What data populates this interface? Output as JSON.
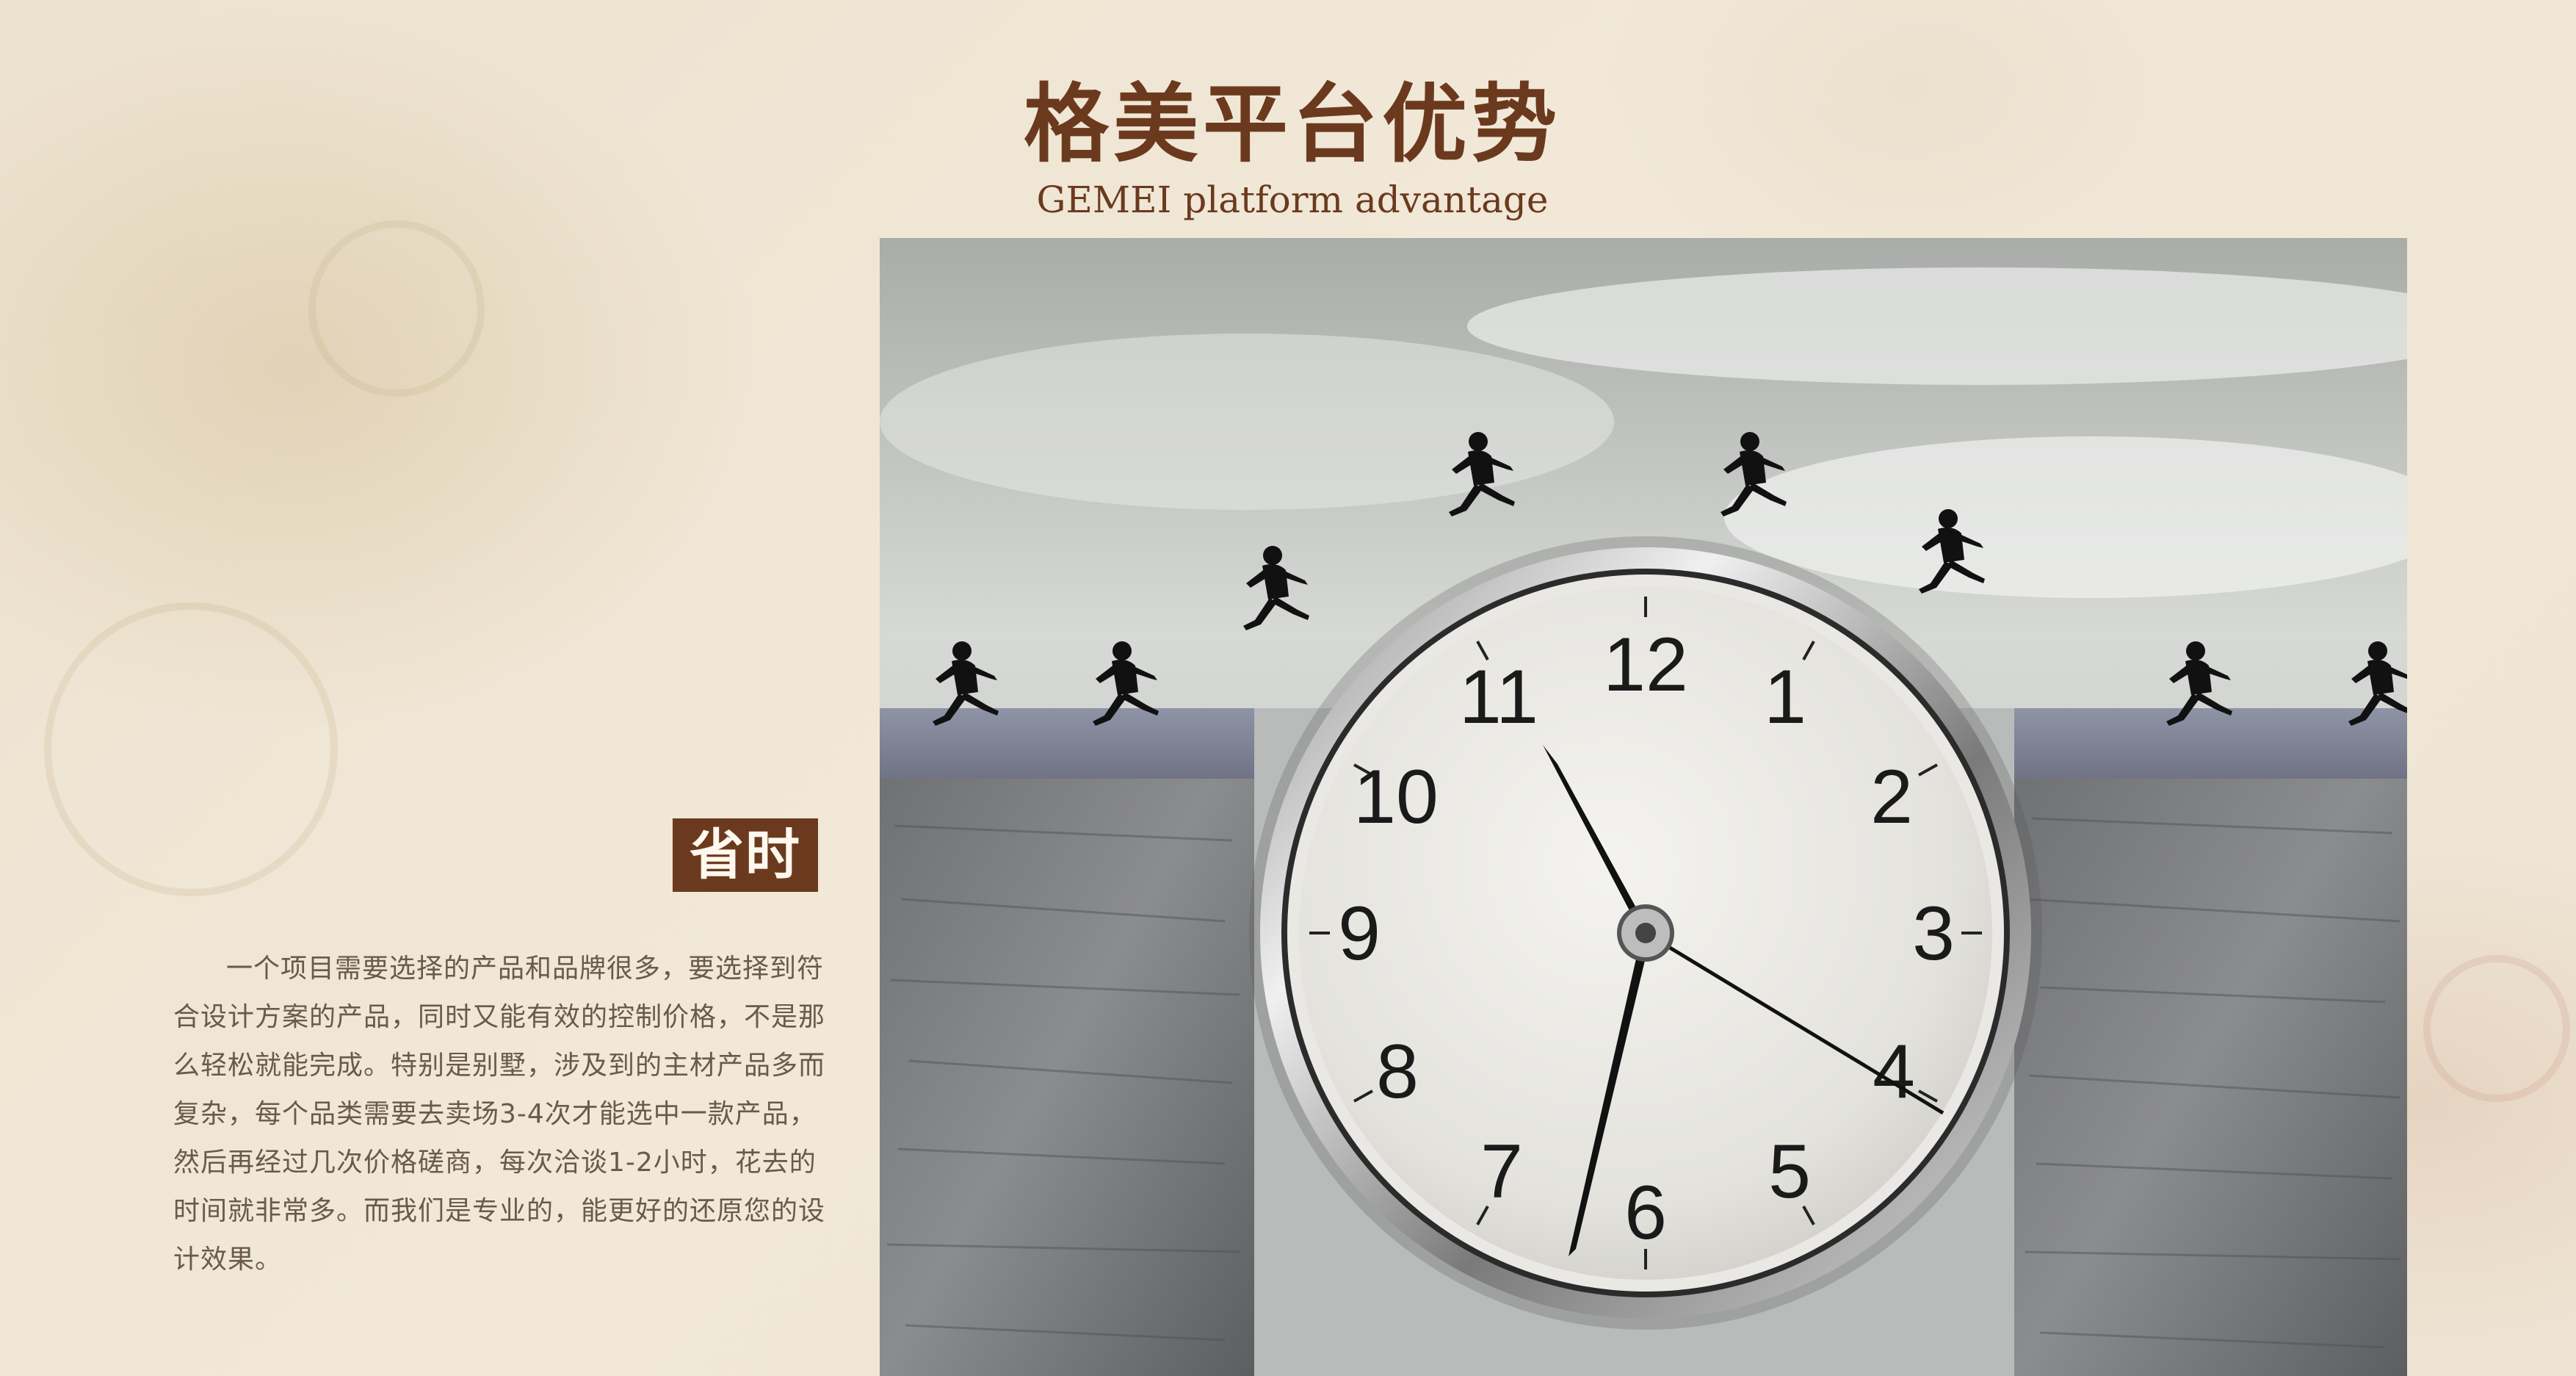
{
  "title": {
    "cn": "格美平台优势",
    "en": "GEMEI platform advantage"
  },
  "feature": {
    "tag": "省时",
    "description": "一个项目需要选择的产品和品牌很多，要选择到符合设计方案的产品，同时又能有效的控制价格，不是那么轻松就能完成。特别是别墅，涉及到的主材产品多而复杂，每个品类需要去卖场3-4次才能选中一款产品，然后再经过几次价格磋商，每次洽谈1-2小时，花去的时间就非常多。而我们是专业的，能更好的还原您的设计效果。"
  },
  "clock": {
    "numerals": [
      "12",
      "1",
      "2",
      "3",
      "4",
      "5",
      "6",
      "7",
      "8",
      "9",
      "10",
      "11"
    ]
  },
  "colors": {
    "accent": "#6b3a1e",
    "background": "#efe6d6",
    "body_text": "#6a5a4a"
  }
}
